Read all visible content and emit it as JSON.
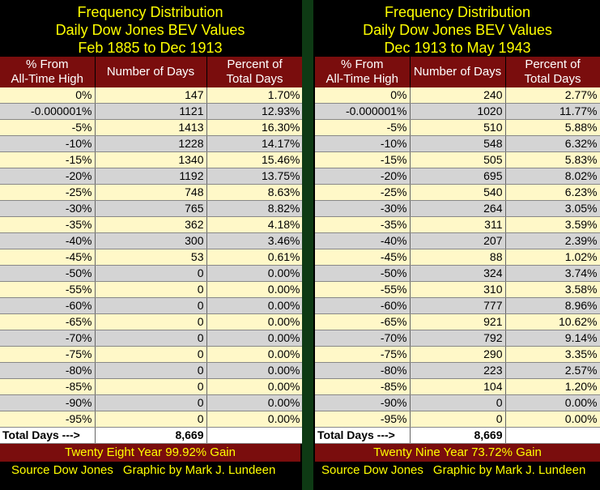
{
  "chart_data": [
    {
      "type": "table",
      "title_lines": [
        "Frequency Distribution",
        "Daily Dow Jones BEV Values",
        "Feb 1885 to Dec 1913"
      ],
      "columns": [
        "% From All-Time High",
        "Number of Days",
        "Percent of Total Days"
      ],
      "col1_lines": [
        "% From",
        "All-Time High"
      ],
      "col3_lines": [
        "Percent of",
        "Total Days"
      ],
      "rows": [
        [
          "0%",
          "147",
          "1.70%"
        ],
        [
          "-0.000001%",
          "1121",
          "12.93%"
        ],
        [
          "-5%",
          "1413",
          "16.30%"
        ],
        [
          "-10%",
          "1228",
          "14.17%"
        ],
        [
          "-15%",
          "1340",
          "15.46%"
        ],
        [
          "-20%",
          "1192",
          "13.75%"
        ],
        [
          "-25%",
          "748",
          "8.63%"
        ],
        [
          "-30%",
          "765",
          "8.82%"
        ],
        [
          "-35%",
          "362",
          "4.18%"
        ],
        [
          "-40%",
          "300",
          "3.46%"
        ],
        [
          "-45%",
          "53",
          "0.61%"
        ],
        [
          "-50%",
          "0",
          "0.00%"
        ],
        [
          "-55%",
          "0",
          "0.00%"
        ],
        [
          "-60%",
          "0",
          "0.00%"
        ],
        [
          "-65%",
          "0",
          "0.00%"
        ],
        [
          "-70%",
          "0",
          "0.00%"
        ],
        [
          "-75%",
          "0",
          "0.00%"
        ],
        [
          "-80%",
          "0",
          "0.00%"
        ],
        [
          "-85%",
          "0",
          "0.00%"
        ],
        [
          "-90%",
          "0",
          "0.00%"
        ],
        [
          "-95%",
          "0",
          "0.00%"
        ]
      ],
      "total_label": "Total Days --->",
      "total_value": "8,669",
      "footer": "Twenty Eight Year 99.92% Gain",
      "source": "Source Dow Jones",
      "credit": "Graphic by Mark J. Lundeen"
    },
    {
      "type": "table",
      "title_lines": [
        "Frequency Distribution",
        "Daily Dow Jones BEV Values",
        "Dec 1913 to May 1943"
      ],
      "columns": [
        "% From All-Time High",
        "Number of Days",
        "Percent of Total Days"
      ],
      "col1_lines": [
        "% From",
        "All-Time High"
      ],
      "col3_lines": [
        "Percent of",
        "Total Days"
      ],
      "rows": [
        [
          "0%",
          "240",
          "2.77%"
        ],
        [
          "-0.000001%",
          "1020",
          "11.77%"
        ],
        [
          "-5%",
          "510",
          "5.88%"
        ],
        [
          "-10%",
          "548",
          "6.32%"
        ],
        [
          "-15%",
          "505",
          "5.83%"
        ],
        [
          "-20%",
          "695",
          "8.02%"
        ],
        [
          "-25%",
          "540",
          "6.23%"
        ],
        [
          "-30%",
          "264",
          "3.05%"
        ],
        [
          "-35%",
          "311",
          "3.59%"
        ],
        [
          "-40%",
          "207",
          "2.39%"
        ],
        [
          "-45%",
          "88",
          "1.02%"
        ],
        [
          "-50%",
          "324",
          "3.74%"
        ],
        [
          "-55%",
          "310",
          "3.58%"
        ],
        [
          "-60%",
          "777",
          "8.96%"
        ],
        [
          "-65%",
          "921",
          "10.62%"
        ],
        [
          "-70%",
          "792",
          "9.14%"
        ],
        [
          "-75%",
          "290",
          "3.35%"
        ],
        [
          "-80%",
          "223",
          "2.57%"
        ],
        [
          "-85%",
          "104",
          "1.20%"
        ],
        [
          "-90%",
          "0",
          "0.00%"
        ],
        [
          "-95%",
          "0",
          "0.00%"
        ]
      ],
      "total_label": "Total Days --->",
      "total_value": "8,669",
      "footer": "Twenty Nine Year 73.72% Gain",
      "source": "Source Dow Jones",
      "credit": "Graphic by Mark J. Lundeen"
    }
  ],
  "colors": {
    "background": "#000000",
    "title_text": "#ffff00",
    "header_bg": "#7a0d0d",
    "row_light": "#fff8c8",
    "row_gray": "#d4d4d4",
    "divider": "#0e3a14"
  }
}
